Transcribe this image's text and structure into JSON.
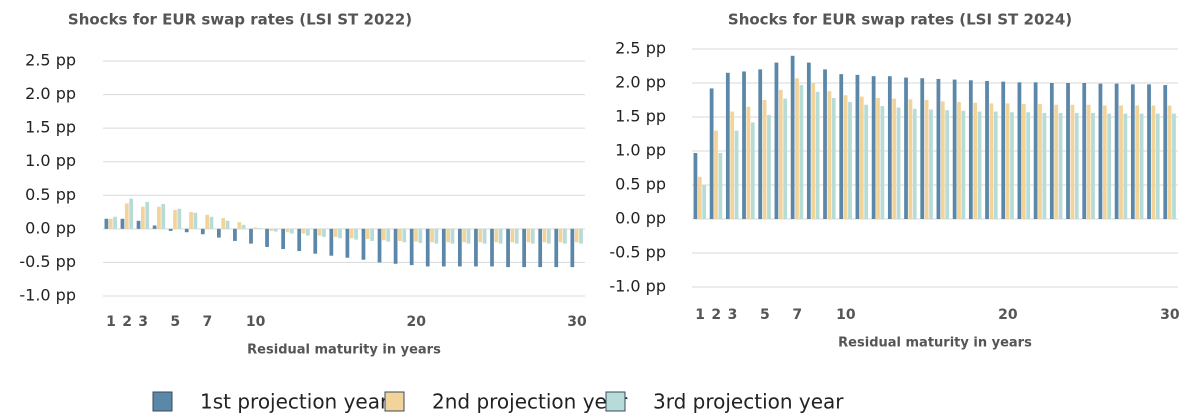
{
  "chart_data": [
    {
      "type": "bar",
      "title": "Shocks for EUR swap rates (LSI ST 2022)",
      "x_label": "Residual maturity in years",
      "categories": [
        "1",
        "2",
        "3",
        null,
        "5",
        null,
        "7",
        null,
        null,
        "10",
        null,
        null,
        null,
        null,
        null,
        null,
        null,
        null,
        null,
        "20",
        null,
        null,
        null,
        null,
        null,
        null,
        null,
        null,
        null,
        "30"
      ],
      "series": [
        {
          "name": "1st projection year",
          "color": "#5b87a8",
          "values": [
            0.15,
            0.15,
            0.12,
            0.05,
            -0.03,
            -0.05,
            -0.08,
            -0.13,
            -0.18,
            -0.22,
            -0.27,
            -0.3,
            -0.33,
            -0.37,
            -0.4,
            -0.43,
            -0.46,
            -0.5,
            -0.52,
            -0.54,
            -0.56,
            -0.56,
            -0.56,
            -0.56,
            -0.56,
            -0.57,
            -0.57,
            -0.57,
            -0.57,
            -0.57
          ]
        },
        {
          "name": "2nd projection year",
          "color": "#f2d49b",
          "values": [
            0.15,
            0.38,
            0.33,
            0.33,
            0.28,
            0.25,
            0.21,
            0.16,
            0.1,
            0.02,
            -0.03,
            -0.05,
            -0.07,
            -0.1,
            -0.12,
            -0.14,
            -0.15,
            -0.17,
            -0.18,
            -0.19,
            -0.2,
            -0.2,
            -0.2,
            -0.2,
            -0.2,
            -0.2,
            -0.2,
            -0.2,
            -0.2,
            -0.2
          ]
        },
        {
          "name": "3rd projection year",
          "color": "#b7dcd8",
          "values": [
            0.18,
            0.45,
            0.4,
            0.37,
            0.3,
            0.24,
            0.18,
            0.12,
            0.06,
            0.01,
            -0.04,
            -0.07,
            -0.1,
            -0.12,
            -0.14,
            -0.16,
            -0.18,
            -0.19,
            -0.2,
            -0.21,
            -0.22,
            -0.22,
            -0.22,
            -0.22,
            -0.22,
            -0.22,
            -0.22,
            -0.22,
            -0.22,
            -0.22
          ]
        }
      ],
      "ylim": [
        -1,
        2.5
      ],
      "yticks": [
        {
          "value": -1,
          "label": "-1.0 pp"
        },
        {
          "value": -0.5,
          "label": "-0.5 pp"
        },
        {
          "value": 0,
          "label": "0.0 pp"
        },
        {
          "value": 0.5,
          "label": "0.5 pp"
        },
        {
          "value": 1,
          "label": "1.0 pp"
        },
        {
          "value": 1.5,
          "label": "1.5 pp"
        },
        {
          "value": 2,
          "label": "2.0 pp"
        },
        {
          "value": 2.5,
          "label": "2.5 pp"
        }
      ],
      "grid": true
    },
    {
      "type": "bar",
      "title": "Shocks for EUR swap rates (LSI ST 2024)",
      "x_label": "Residual maturity in years",
      "categories": [
        "1",
        "2",
        "3",
        null,
        "5",
        null,
        "7",
        null,
        null,
        "10",
        null,
        null,
        null,
        null,
        null,
        null,
        null,
        null,
        null,
        "20",
        null,
        null,
        null,
        null,
        null,
        null,
        null,
        null,
        null,
        "30"
      ],
      "series": [
        {
          "color": "#5b87a8",
          "values": [
            0.97,
            1.92,
            2.15,
            2.17,
            2.2,
            2.3,
            2.4,
            2.3,
            2.2,
            2.13,
            2.12,
            2.1,
            2.1,
            2.08,
            2.07,
            2.06,
            2.05,
            2.04,
            2.03,
            2.02,
            2.01,
            2.01,
            2.0,
            2.0,
            2.0,
            1.99,
            1.99,
            1.98,
            1.98,
            1.97
          ]
        },
        {
          "color": "#f2d49b",
          "values": [
            0.62,
            1.3,
            1.58,
            1.65,
            1.75,
            1.9,
            2.07,
            2.0,
            1.88,
            1.82,
            1.8,
            1.78,
            1.77,
            1.76,
            1.75,
            1.73,
            1.72,
            1.71,
            1.7,
            1.7,
            1.69,
            1.69,
            1.68,
            1.68,
            1.68,
            1.67,
            1.67,
            1.67,
            1.67,
            1.67
          ]
        },
        {
          "color": "#b7dcd8",
          "values": [
            0.5,
            0.97,
            1.3,
            1.42,
            1.53,
            1.77,
            1.97,
            1.87,
            1.78,
            1.72,
            1.68,
            1.66,
            1.64,
            1.62,
            1.61,
            1.6,
            1.59,
            1.58,
            1.58,
            1.57,
            1.57,
            1.56,
            1.56,
            1.56,
            1.56,
            1.55,
            1.55,
            1.55,
            1.55,
            1.55
          ]
        }
      ],
      "ylim": [
        -1,
        2.5
      ],
      "yticks": [
        {
          "value": -1,
          "label": "-1.0 pp"
        },
        {
          "value": -0.5,
          "label": "-0.5 pp"
        },
        {
          "value": 0,
          "label": "0.0 pp"
        },
        {
          "value": 0.5,
          "label": "0.5 pp"
        },
        {
          "value": 1,
          "label": "1.0 pp"
        },
        {
          "value": 1.5,
          "label": "1.5 pp"
        },
        {
          "value": 2,
          "label": "2.0 pp"
        },
        {
          "value": 2.5,
          "label": "2.5 pp"
        }
      ],
      "grid": true
    }
  ]
}
